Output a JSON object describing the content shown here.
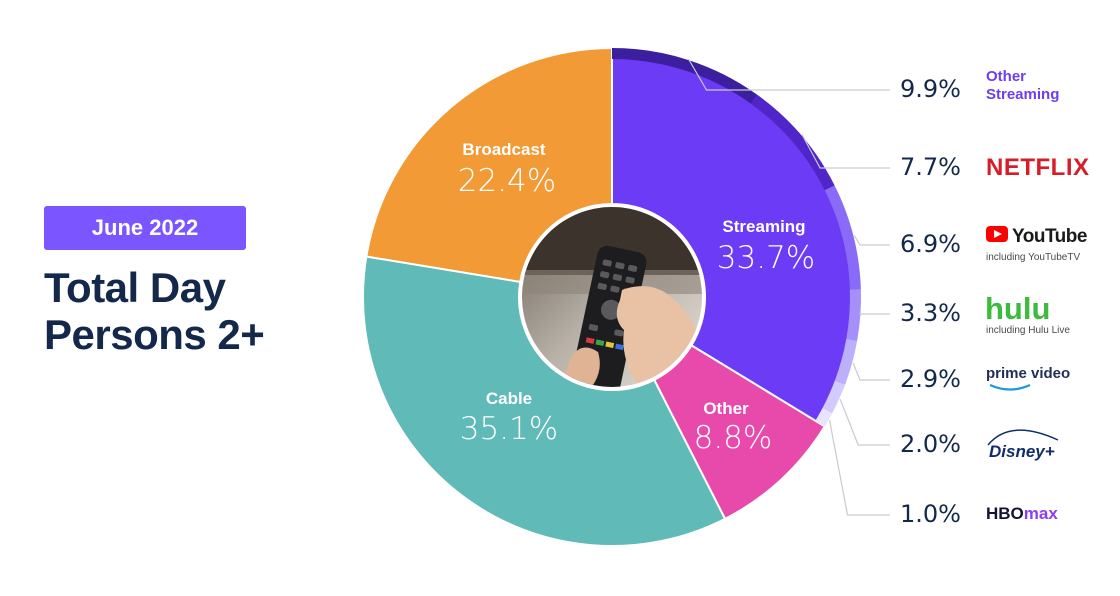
{
  "badge": {
    "label": "June 2022",
    "color": "#7b55ff"
  },
  "title": {
    "line1": "Total Day",
    "line2": "Persons 2+"
  },
  "chart_data": {
    "type": "pie",
    "donut": true,
    "center_image": "tv-remote-photo",
    "slices": [
      {
        "name": "Streaming",
        "value": 33.7,
        "color": "#6c3bf5"
      },
      {
        "name": "Other",
        "value": 8.8,
        "color": "#e84aac"
      },
      {
        "name": "Cable",
        "value": 35.1,
        "color": "#5fbab8"
      },
      {
        "name": "Broadcast",
        "value": 22.4,
        "color": "#f19a36"
      }
    ],
    "streaming_breakdown": [
      {
        "name": "Other Streaming",
        "label": "Other\nStreaming",
        "value": 9.9,
        "color": "#3b1f9e",
        "logo_color": "#6d3ef0"
      },
      {
        "name": "Netflix",
        "label": "NETFLIX",
        "value": 7.7,
        "color": "#5126c8",
        "logo_color": "#d71e28"
      },
      {
        "name": "YouTube",
        "label": "YouTube",
        "sublabel": "including YouTubeTV",
        "value": 6.9,
        "color": "#8a6bf8",
        "logo_color": "#ff0000"
      },
      {
        "name": "Hulu",
        "label": "hulu",
        "sublabel": "including Hulu Live",
        "value": 3.3,
        "color": "#a58ffa",
        "logo_color": "#3dbb3d"
      },
      {
        "name": "Prime Video",
        "label": "prime video",
        "value": 2.9,
        "color": "#bcaffc",
        "logo_color": "#1f2f56"
      },
      {
        "name": "Disney+",
        "label": "Disney+",
        "value": 2.0,
        "color": "#d3caff",
        "logo_color": "#112d6e"
      },
      {
        "name": "HBO Max",
        "label": "HBOmax",
        "value": 1.0,
        "color": "#e8e3ff",
        "logo_color": "#131336",
        "logo_color2": "#8a3ff0"
      }
    ],
    "legend_values": [
      "9.9%",
      "7.7%",
      "6.9%",
      "3.3%",
      "2.9%",
      "2.0%",
      "1.0%"
    ],
    "slice_values": [
      "33.7%",
      "8.8%",
      "35.1%",
      "22.4%"
    ]
  }
}
